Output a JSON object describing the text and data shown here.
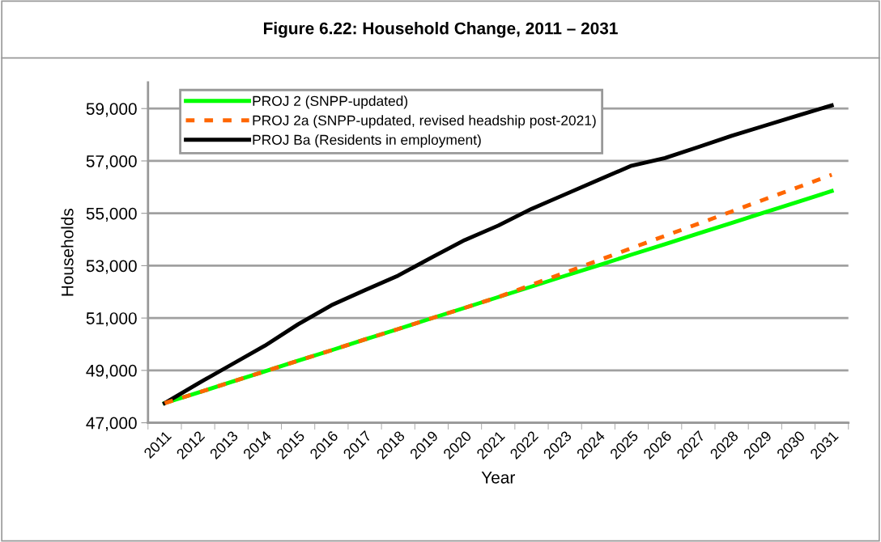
{
  "chart_data": {
    "type": "line",
    "title": "Figure 6.22: Household Change, 2011 – 2031",
    "xlabel": "Year",
    "ylabel": "Households",
    "categories": [
      "2011",
      "2012",
      "2013",
      "2014",
      "2015",
      "2016",
      "2017",
      "2018",
      "2019",
      "2020",
      "2021",
      "2022",
      "2023",
      "2024",
      "2025",
      "2026",
      "2027",
      "2028",
      "2029",
      "2030",
      "2031"
    ],
    "series": [
      {
        "name": "PROJ 2 (SNPP-updated)",
        "color": "#00ff00",
        "line_style": "solid",
        "values": [
          47750,
          48150,
          48560,
          48960,
          49370,
          49770,
          50180,
          50580,
          50990,
          51390,
          51800,
          52200,
          52610,
          53010,
          53420,
          53820,
          54230,
          54630,
          55040,
          55440,
          55850
        ]
      },
      {
        "name": "PROJ 2a (SNPP-updated, revised headship post-2021)",
        "color": "#ff6600",
        "line_style": "dashed",
        "values": [
          47750,
          48150,
          48560,
          48960,
          49370,
          49770,
          50180,
          50580,
          50990,
          51390,
          51800,
          52270,
          52730,
          53200,
          53670,
          54140,
          54600,
          55070,
          55540,
          56000,
          56470
        ]
      },
      {
        "name": "PROJ Ba (Residents in employment)",
        "color": "#000000",
        "line_style": "solid",
        "values": [
          47750,
          48500,
          49220,
          49940,
          50760,
          51490,
          52060,
          52620,
          53310,
          53980,
          54530,
          55170,
          55720,
          56270,
          56820,
          57110,
          57530,
          57960,
          58350,
          58740,
          59120
        ]
      }
    ],
    "ylim": [
      47000,
      60000
    ],
    "yticks": [
      {
        "value": 47000,
        "label": "47,000"
      },
      {
        "value": 49000,
        "label": "49,000"
      },
      {
        "value": 51000,
        "label": "51,000"
      },
      {
        "value": 53000,
        "label": "53,000"
      },
      {
        "value": 55000,
        "label": "55,000"
      },
      {
        "value": 57000,
        "label": "57,000"
      },
      {
        "value": 59000,
        "label": "59,000"
      }
    ],
    "grid": "y",
    "legend": "top left",
    "marker": "none"
  }
}
